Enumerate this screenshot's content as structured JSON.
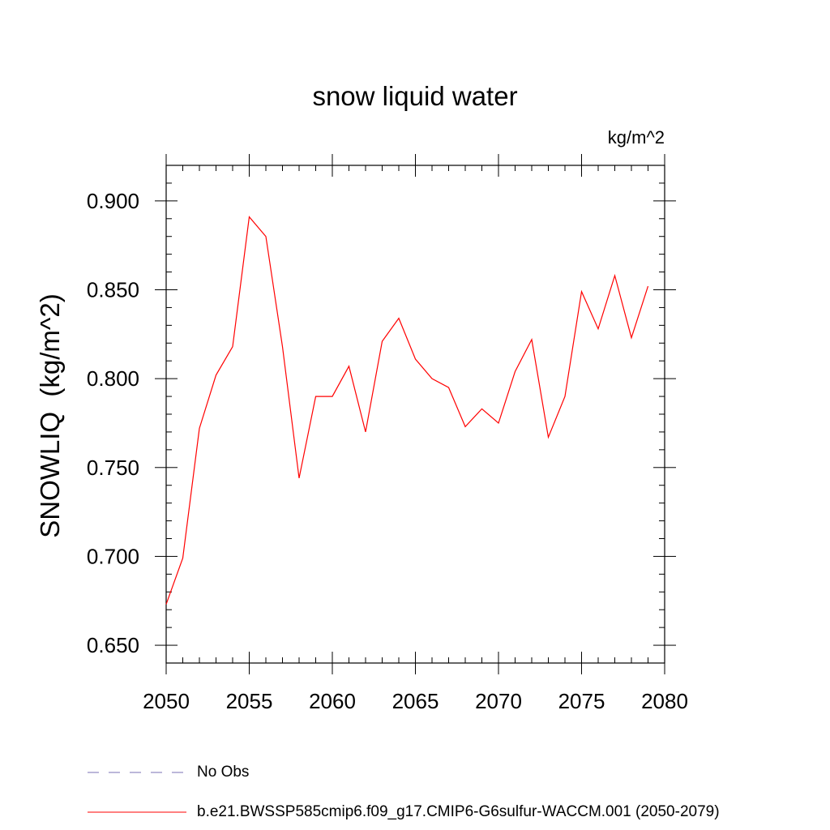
{
  "chart_data": {
    "type": "line",
    "title": "snow liquid water",
    "units_label": "kg/m^2",
    "ylabel": "SNOWLIQ  (kg/m^2)",
    "xlabel": "",
    "xlim": [
      2050,
      2080
    ],
    "ylim": [
      0.64,
      0.92
    ],
    "x_ticks": [
      2050,
      2055,
      2060,
      2065,
      2070,
      2075,
      2080
    ],
    "y_ticks": [
      0.65,
      0.7,
      0.75,
      0.8,
      0.85,
      0.9
    ],
    "y_tick_labels": [
      "0.650",
      "0.700",
      "0.750",
      "0.800",
      "0.850",
      "0.900"
    ],
    "grid": false,
    "legend_position": "bottom",
    "series": [
      {
        "name": "b.e21.BWSSP585cmip6.f09_g17.CMIP6-G6sulfur-WACCM.001 (2050-2079)",
        "color": "#ff0000",
        "style": "solid",
        "x": [
          2050,
          2051,
          2052,
          2053,
          2054,
          2055,
          2056,
          2057,
          2058,
          2059,
          2060,
          2061,
          2062,
          2063,
          2064,
          2065,
          2066,
          2067,
          2068,
          2069,
          2070,
          2071,
          2072,
          2073,
          2074,
          2075,
          2076,
          2077,
          2078,
          2079
        ],
        "values": [
          0.673,
          0.699,
          0.772,
          0.802,
          0.818,
          0.891,
          0.88,
          0.818,
          0.744,
          0.79,
          0.79,
          0.807,
          0.77,
          0.821,
          0.834,
          0.811,
          0.8,
          0.795,
          0.773,
          0.783,
          0.775,
          0.804,
          0.822,
          0.767,
          0.79,
          0.849,
          0.828,
          0.858,
          0.823,
          0.852
        ]
      }
    ],
    "legend": [
      {
        "label": "No Obs",
        "color": "#7a6fb5",
        "style": "dashed"
      },
      {
        "label": "b.e21.BWSSP585cmip6.f09_g17.CMIP6-G6sulfur-WACCM.001 (2050-2079)",
        "color": "#ff0000",
        "style": "solid"
      }
    ]
  }
}
